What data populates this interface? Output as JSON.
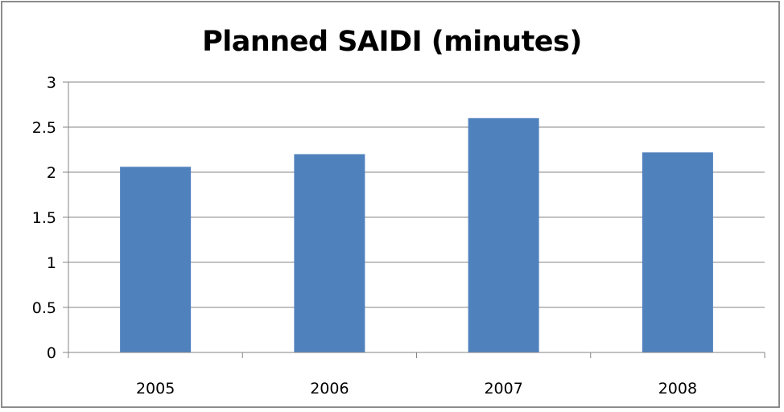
{
  "chart_data": {
    "type": "bar",
    "title": "Planned SAIDI (minutes)",
    "categories": [
      "2005",
      "2006",
      "2007",
      "2008"
    ],
    "values": [
      2.06,
      2.2,
      2.6,
      2.22
    ],
    "ylim": [
      0,
      3
    ],
    "yticks": [
      "0",
      "0.5",
      "1",
      "1.5",
      "2",
      "2.5",
      "3"
    ],
    "xlabel": "",
    "ylabel": "",
    "grid": true,
    "legend": "none",
    "bar_color": "#4f81bd",
    "grid_color": "#868686"
  }
}
